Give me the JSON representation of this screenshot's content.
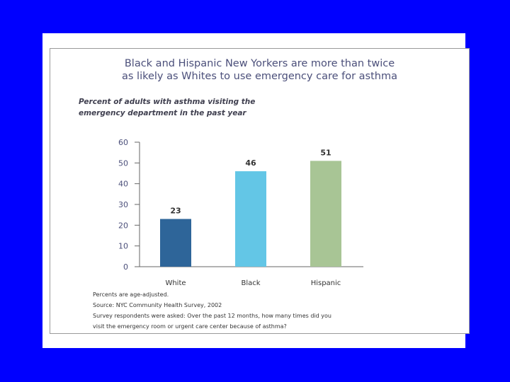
{
  "chart_data": {
    "type": "bar",
    "title": "Black and Hispanic New Yorkers are more than twice",
    "subtitle": "as likely as Whites to use emergency care for asthma",
    "ylabel_lines": [
      "Percent of adults with asthma visiting the",
      "emergency department in the past year"
    ],
    "xlabel": "",
    "categories": [
      "White",
      "Black",
      "Hispanic"
    ],
    "values": [
      23,
      46,
      51
    ],
    "data_labels": [
      "23",
      "46",
      "51"
    ],
    "bar_colors": [
      "#2e6599",
      "#63c6e6",
      "#a8c595"
    ],
    "ylim": [
      0,
      60
    ],
    "yticks": [
      0,
      10,
      20,
      30,
      40,
      50,
      60
    ],
    "grid": false,
    "legend": "none"
  },
  "notes": [
    "Percents are age-adjusted.",
    "Source: NYC Community Health Survey, 2002",
    "Survey respondents were asked: Over the past 12 months, how many times did you",
    "visit the emergency room or urgent care center because of asthma?"
  ],
  "colors": {
    "page_background": "#0000ff",
    "panel_background": "#ffffff",
    "title_color": "#4b4f7a"
  }
}
